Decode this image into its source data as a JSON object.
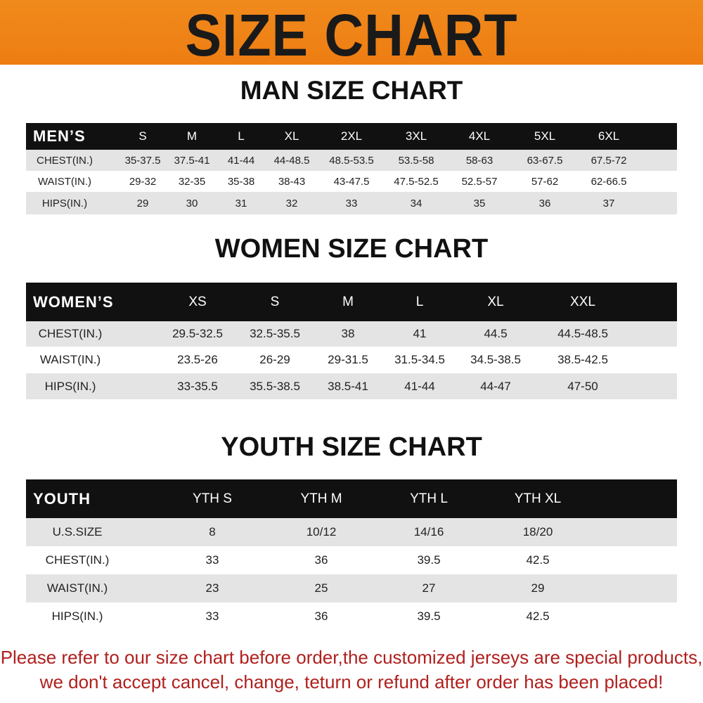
{
  "banner": {
    "title": "SIZE CHART",
    "color": "#ef8418"
  },
  "men": {
    "title": "MAN SIZE CHART",
    "header": [
      "MEN’S",
      "S",
      "M",
      "L",
      "XL",
      "2XL",
      "3XL",
      "4XL",
      "5XL",
      "6XL"
    ],
    "rows": [
      [
        "CHEST(IN.)",
        "35-37.5",
        "37.5-41",
        "41-44",
        "44-48.5",
        "48.5-53.5",
        "53.5-58",
        "58-63",
        "63-67.5",
        "67.5-72"
      ],
      [
        "WAIST(IN.)",
        "29-32",
        "32-35",
        "35-38",
        "38-43",
        "43-47.5",
        "47.5-52.5",
        "52.5-57",
        "57-62",
        "62-66.5"
      ],
      [
        "HIPS(IN.)",
        "29",
        "30",
        "31",
        "32",
        "33",
        "34",
        "35",
        "36",
        "37"
      ]
    ]
  },
  "women": {
    "title": "WOMEN SIZE CHART",
    "header": [
      "WOMEN’S",
      "XS",
      "S",
      "M",
      "L",
      "XL",
      "XXL"
    ],
    "rows": [
      [
        "CHEST(IN.)",
        "29.5-32.5",
        "32.5-35.5",
        "38",
        "41",
        "44.5",
        "44.5-48.5"
      ],
      [
        "WAIST(IN.)",
        "23.5-26",
        "26-29",
        "29-31.5",
        "31.5-34.5",
        "34.5-38.5",
        "38.5-42.5"
      ],
      [
        "HIPS(IN.)",
        "33-35.5",
        "35.5-38.5",
        "38.5-41",
        "41-44",
        "44-47",
        "47-50"
      ]
    ]
  },
  "youth": {
    "title": "YOUTH SIZE CHART",
    "header": [
      "YOUTH",
      "YTH S",
      "YTH M",
      "YTH L",
      "YTH XL"
    ],
    "rows": [
      [
        "U.S.SIZE",
        "8",
        "10/12",
        "14/16",
        "18/20"
      ],
      [
        "CHEST(IN.)",
        "33",
        "36",
        "39.5",
        "42.5"
      ],
      [
        "WAIST(IN.)",
        "23",
        "25",
        "27",
        "29"
      ],
      [
        "HIPS(IN.)",
        "33",
        "36",
        "39.5",
        "42.5"
      ]
    ]
  },
  "notice": {
    "line1": "Please refer to our size chart before order,the customized jerseys are special products,",
    "line2": "we don't accept cancel, change, teturn or refund after order has been placed!",
    "color": "#b0201e"
  }
}
